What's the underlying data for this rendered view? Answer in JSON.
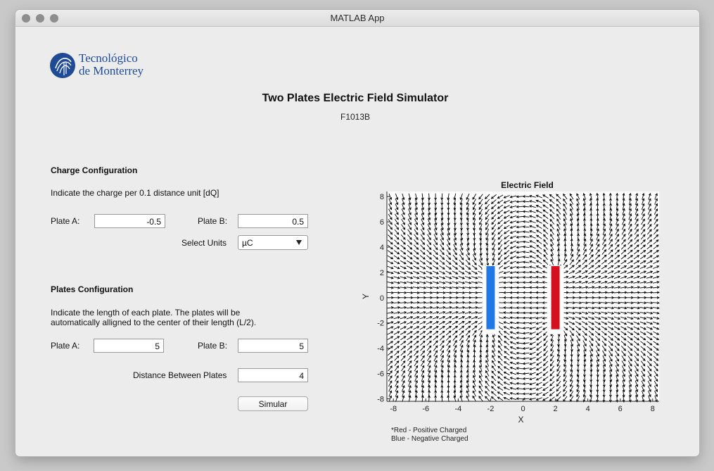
{
  "window": {
    "title": "MATLAB App"
  },
  "logo": {
    "line1": "Tecnológico",
    "line2": "de Monterrey"
  },
  "header": {
    "title": "Two Plates Electric Field Simulator",
    "subtitle": "F1013B"
  },
  "charge": {
    "heading": "Charge Configuration",
    "instruction": "Indicate the charge per 0.1 distance unit [dQ]",
    "plate_a_label": "Plate  A:",
    "plate_a_value": "-0.5",
    "plate_b_label": "Plate B:",
    "plate_b_value": "0.5",
    "units_label": "Select Units",
    "units_value": "µC"
  },
  "plates": {
    "heading": "Plates Configuration",
    "instruction_line1": "Indicate the length of each plate. The plates will be",
    "instruction_line2": "automatically alligned to the center of their length (L/2).",
    "plate_a_label": "Plate  A:",
    "plate_a_value": "5",
    "plate_b_label": "Plate B:",
    "plate_b_value": "5",
    "distance_label": "Distance Between Plates",
    "distance_value": "4",
    "simulate_label": "Simular"
  },
  "chart_data": {
    "type": "quiver",
    "title": "Electric Field",
    "xlabel": "X",
    "ylabel": "Y",
    "xlim": [
      -8.4,
      8.4
    ],
    "ylim": [
      -8.2,
      8.4
    ],
    "xticks": [
      "-8",
      "-6",
      "-4",
      "-2",
      "0",
      "2",
      "4",
      "6",
      "8"
    ],
    "yticks": [
      "8",
      "6",
      "4",
      "2",
      "0",
      "-2",
      "-4",
      "-6",
      "-8"
    ],
    "plates": [
      {
        "name": "Plate A",
        "x": -2,
        "y_min": -2.5,
        "y_max": 2.5,
        "color": "#1f78e6",
        "charge": -0.5
      },
      {
        "name": "Plate B",
        "x": 2,
        "y_min": -2.5,
        "y_max": 2.5,
        "color": "#d4101e",
        "charge": 0.5
      }
    ],
    "arrow_color": "#000000",
    "notes": [
      "*Red - Positive Charged",
      " Blue - Negative Charged"
    ]
  }
}
